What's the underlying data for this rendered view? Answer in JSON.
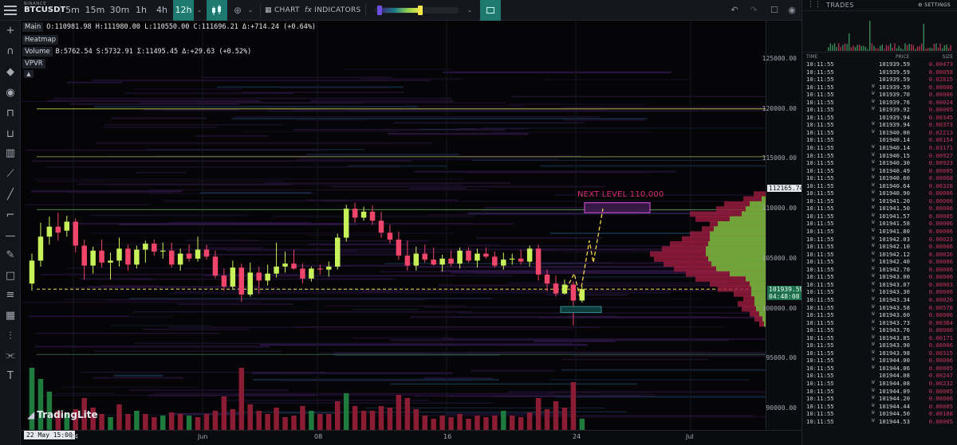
{
  "header": {
    "exchange": "BINANCE",
    "symbol": "BTCUSDT",
    "timeframes": [
      "5m",
      "15m",
      "30m",
      "1h",
      "4h",
      "12h"
    ],
    "active_timeframe": "12h",
    "chart_label": "CHART",
    "indicators_label": "INDICATORS"
  },
  "legend": {
    "main_tag": "Main",
    "ohlc": "O:110981.98 H:111980.00 L:110550.00 C:111696.21 Δ:+714.24 (+0.64%)",
    "heatmap_tag": "Heatmap",
    "volume_tag": "Volume",
    "volume_values": "B:5762.54 S:5732.91 Σ:11495.45 Δ:+29.63 (+0.52%)",
    "vpvr_tag": "VPVR"
  },
  "annotation": {
    "next_level": "NEXT LEVEL 110,000"
  },
  "watermark": "TradingLite",
  "price_axis": {
    "labels": [
      "125000.00",
      "120000.00",
      "115000.00",
      "110000.00",
      "105000.00",
      "100000.00",
      "95000.00",
      "90000.00"
    ],
    "high_badge": "112165.74",
    "current_badge": "101939.59",
    "countdown": "04:48:08"
  },
  "time_axis": {
    "cursor_badge": "22 May 15:00",
    "labels": [
      "24",
      "Jun",
      "08",
      "16",
      "24",
      "Jul"
    ]
  },
  "trades_panel": {
    "title": "TRADES",
    "settings_label": "SETTINGS",
    "columns": {
      "time": "TIME",
      "price": "PRICE",
      "size": "SIZE"
    },
    "rows": [
      {
        "time": "10:11:55",
        "m": "",
        "price": "101939.59",
        "size": "0.00473"
      },
      {
        "time": "10:11:55",
        "m": "",
        "price": "101939.59",
        "size": "0.00058"
      },
      {
        "time": "10:11:55",
        "m": "",
        "price": "101939.59",
        "size": "0.02815"
      },
      {
        "time": "10:11:55",
        "m": "W",
        "price": "101939.59",
        "size": "0.00006"
      },
      {
        "time": "10:11:55",
        "m": "W",
        "price": "101939.70",
        "size": "0.00006"
      },
      {
        "time": "10:11:55",
        "m": "W",
        "price": "101939.76",
        "size": "0.00024"
      },
      {
        "time": "10:11:55",
        "m": "W",
        "price": "101939.92",
        "size": "0.00005"
      },
      {
        "time": "10:11:55",
        "m": "",
        "price": "101939.94",
        "size": "0.00345"
      },
      {
        "time": "10:11:55",
        "m": "W",
        "price": "101939.94",
        "size": "0.00373"
      },
      {
        "time": "10:11:55",
        "m": "W",
        "price": "101940.00",
        "size": "0.02213"
      },
      {
        "time": "10:11:55",
        "m": "",
        "price": "101940.14",
        "size": "0.06154"
      },
      {
        "time": "10:11:55",
        "m": "W",
        "price": "101940.14",
        "size": "0.03171"
      },
      {
        "time": "10:11:55",
        "m": "W",
        "price": "101940.15",
        "size": "0.00927"
      },
      {
        "time": "10:11:55",
        "m": "W",
        "price": "101940.30",
        "size": "0.00923"
      },
      {
        "time": "10:11:55",
        "m": "W",
        "price": "101940.49",
        "size": "0.00005"
      },
      {
        "time": "10:11:55",
        "m": "W",
        "price": "101940.60",
        "size": "0.00068"
      },
      {
        "time": "10:11:55",
        "m": "W",
        "price": "101940.64",
        "size": "0.00328"
      },
      {
        "time": "10:11:55",
        "m": "W",
        "price": "101940.90",
        "size": "0.00006"
      },
      {
        "time": "10:11:55",
        "m": "W",
        "price": "101941.20",
        "size": "0.00006"
      },
      {
        "time": "10:11:55",
        "m": "W",
        "price": "101941.50",
        "size": "0.00006"
      },
      {
        "time": "10:11:55",
        "m": "W",
        "price": "101941.57",
        "size": "0.00005"
      },
      {
        "time": "10:11:55",
        "m": "W",
        "price": "101941.58",
        "size": "0.00006"
      },
      {
        "time": "10:11:55",
        "m": "W",
        "price": "101941.80",
        "size": "0.00006"
      },
      {
        "time": "10:11:55",
        "m": "W",
        "price": "101942.03",
        "size": "0.00023"
      },
      {
        "time": "10:11:55",
        "m": "W",
        "price": "101942.10",
        "size": "0.00006"
      },
      {
        "time": "10:11:55",
        "m": "W",
        "price": "101942.12",
        "size": "0.00026"
      },
      {
        "time": "10:11:55",
        "m": "W",
        "price": "101942.40",
        "size": "0.00006"
      },
      {
        "time": "10:11:55",
        "m": "W",
        "price": "101942.70",
        "size": "0.00006"
      },
      {
        "time": "10:11:55",
        "m": "W",
        "price": "101943.00",
        "size": "0.00006"
      },
      {
        "time": "10:11:55",
        "m": "W",
        "price": "101943.07",
        "size": "0.00003"
      },
      {
        "time": "10:11:55",
        "m": "W",
        "price": "101943.30",
        "size": "0.00006"
      },
      {
        "time": "10:11:55",
        "m": "W",
        "price": "101943.34",
        "size": "0.00026"
      },
      {
        "time": "10:11:55",
        "m": "W",
        "price": "101943.58",
        "size": "0.00578"
      },
      {
        "time": "10:11:55",
        "m": "W",
        "price": "101943.60",
        "size": "0.00006"
      },
      {
        "time": "10:11:55",
        "m": "W",
        "price": "101943.73",
        "size": "0.00384"
      },
      {
        "time": "10:11:55",
        "m": "W",
        "price": "101943.76",
        "size": "0.00006"
      },
      {
        "time": "10:11:55",
        "m": "W",
        "price": "101943.85",
        "size": "0.00171"
      },
      {
        "time": "10:11:55",
        "m": "W",
        "price": "101943.90",
        "size": "0.00006"
      },
      {
        "time": "10:11:55",
        "m": "W",
        "price": "101943.98",
        "size": "0.00315"
      },
      {
        "time": "10:11:55",
        "m": "W",
        "price": "101944.00",
        "size": "0.00006"
      },
      {
        "time": "10:11:55",
        "m": "W",
        "price": "101944.06",
        "size": "0.00005"
      },
      {
        "time": "10:11:55",
        "m": "",
        "price": "101944.08",
        "size": "0.00247"
      },
      {
        "time": "10:11:55",
        "m": "W",
        "price": "101944.08",
        "size": "0.00232"
      },
      {
        "time": "10:11:55",
        "m": "W",
        "price": "101944.09",
        "size": "0.00005"
      },
      {
        "time": "10:11:55",
        "m": "W",
        "price": "101944.20",
        "size": "0.00006"
      },
      {
        "time": "10:11:55",
        "m": "W",
        "price": "101944.44",
        "size": "0.00005"
      },
      {
        "time": "10:11:55",
        "m": "W",
        "price": "101944.50",
        "size": "0.00188"
      },
      {
        "time": "10:11:55",
        "m": "W",
        "price": "101944.53",
        "size": "0.00005"
      }
    ]
  },
  "colors": {
    "bull": "#c8f25a",
    "bear": "#f0456b",
    "accent": "#1e7a6e",
    "vol_bull": "#1f7a3e",
    "vol_bear": "#8a1c33",
    "projection": "#f2d34e",
    "box_top": "#d050d8",
    "box_bottom": "#2e8f8f"
  },
  "chart_data": {
    "type": "candlestick",
    "ylim": [
      88000,
      128000
    ],
    "candles": [
      {
        "o": 102500,
        "h": 105500,
        "l": 101800,
        "c": 104800
      },
      {
        "o": 104800,
        "h": 108600,
        "l": 104200,
        "c": 107200
      },
      {
        "o": 107200,
        "h": 109200,
        "l": 106400,
        "c": 108200
      },
      {
        "o": 108200,
        "h": 109600,
        "l": 106800,
        "c": 107600
      },
      {
        "o": 107800,
        "h": 109300,
        "l": 107200,
        "c": 108700
      },
      {
        "o": 108700,
        "h": 109000,
        "l": 105600,
        "c": 106300
      },
      {
        "o": 106300,
        "h": 106900,
        "l": 102900,
        "c": 104300
      },
      {
        "o": 104300,
        "h": 106200,
        "l": 103500,
        "c": 105800
      },
      {
        "o": 105800,
        "h": 106900,
        "l": 104100,
        "c": 104600
      },
      {
        "o": 104600,
        "h": 105600,
        "l": 102900,
        "c": 104800
      },
      {
        "o": 104800,
        "h": 107100,
        "l": 104200,
        "c": 106000
      },
      {
        "o": 106000,
        "h": 106400,
        "l": 103800,
        "c": 104400
      },
      {
        "o": 104400,
        "h": 106300,
        "l": 104000,
        "c": 105900
      },
      {
        "o": 105900,
        "h": 106800,
        "l": 104600,
        "c": 106500
      },
      {
        "o": 106500,
        "h": 106900,
        "l": 105300,
        "c": 105700
      },
      {
        "o": 105700,
        "h": 106600,
        "l": 105000,
        "c": 105800
      },
      {
        "o": 105800,
        "h": 106600,
        "l": 104100,
        "c": 104400
      },
      {
        "o": 104400,
        "h": 106000,
        "l": 103800,
        "c": 105500
      },
      {
        "o": 105500,
        "h": 106400,
        "l": 104700,
        "c": 105000
      },
      {
        "o": 105000,
        "h": 107200,
        "l": 104700,
        "c": 105900
      },
      {
        "o": 105900,
        "h": 106400,
        "l": 104900,
        "c": 105200
      },
      {
        "o": 105200,
        "h": 105800,
        "l": 103000,
        "c": 103300
      },
      {
        "o": 103300,
        "h": 104000,
        "l": 101800,
        "c": 102200
      },
      {
        "o": 102200,
        "h": 104800,
        "l": 102000,
        "c": 104100
      },
      {
        "o": 104100,
        "h": 104500,
        "l": 100700,
        "c": 101400
      },
      {
        "o": 101400,
        "h": 104600,
        "l": 101200,
        "c": 103600
      },
      {
        "o": 103600,
        "h": 104200,
        "l": 101500,
        "c": 102800
      },
      {
        "o": 102800,
        "h": 104400,
        "l": 102300,
        "c": 103500
      },
      {
        "o": 103500,
        "h": 106600,
        "l": 103100,
        "c": 104200
      },
      {
        "o": 104200,
        "h": 105700,
        "l": 103600,
        "c": 104500
      },
      {
        "o": 104500,
        "h": 105900,
        "l": 103900,
        "c": 104000
      },
      {
        "o": 104000,
        "h": 104500,
        "l": 102500,
        "c": 103000
      },
      {
        "o": 103000,
        "h": 104200,
        "l": 102700,
        "c": 104000
      },
      {
        "o": 104000,
        "h": 104400,
        "l": 103400,
        "c": 103900
      },
      {
        "o": 103900,
        "h": 104700,
        "l": 103200,
        "c": 104200
      },
      {
        "o": 104200,
        "h": 107500,
        "l": 103900,
        "c": 107100
      },
      {
        "o": 107100,
        "h": 110400,
        "l": 106700,
        "c": 110000
      },
      {
        "o": 110000,
        "h": 110600,
        "l": 108600,
        "c": 109100
      },
      {
        "o": 109100,
        "h": 110200,
        "l": 108800,
        "c": 109700
      },
      {
        "o": 109700,
        "h": 110300,
        "l": 108400,
        "c": 108800
      },
      {
        "o": 108800,
        "h": 109700,
        "l": 107100,
        "c": 107600
      },
      {
        "o": 107600,
        "h": 108400,
        "l": 106500,
        "c": 106900
      },
      {
        "o": 106900,
        "h": 107700,
        "l": 104900,
        "c": 105300
      },
      {
        "o": 105300,
        "h": 106800,
        "l": 103800,
        "c": 104300
      },
      {
        "o": 104300,
        "h": 106200,
        "l": 103800,
        "c": 105500
      },
      {
        "o": 105500,
        "h": 106400,
        "l": 104600,
        "c": 104900
      },
      {
        "o": 104900,
        "h": 106100,
        "l": 104300,
        "c": 104400
      },
      {
        "o": 104400,
        "h": 105400,
        "l": 103700,
        "c": 105000
      },
      {
        "o": 105000,
        "h": 105800,
        "l": 104200,
        "c": 104500
      },
      {
        "o": 104500,
        "h": 106100,
        "l": 104000,
        "c": 105800
      },
      {
        "o": 105800,
        "h": 106100,
        "l": 104600,
        "c": 104800
      },
      {
        "o": 104800,
        "h": 106000,
        "l": 104100,
        "c": 105500
      },
      {
        "o": 105500,
        "h": 106100,
        "l": 105000,
        "c": 105200
      },
      {
        "o": 105200,
        "h": 105700,
        "l": 104100,
        "c": 104300
      },
      {
        "o": 104300,
        "h": 105600,
        "l": 103900,
        "c": 104900
      },
      {
        "o": 104900,
        "h": 105500,
        "l": 104400,
        "c": 105000
      },
      {
        "o": 105000,
        "h": 105900,
        "l": 104400,
        "c": 104700
      },
      {
        "o": 104700,
        "h": 106300,
        "l": 104200,
        "c": 106000
      },
      {
        "o": 106000,
        "h": 106400,
        "l": 102800,
        "c": 103400
      },
      {
        "o": 103400,
        "h": 103900,
        "l": 101700,
        "c": 102500
      },
      {
        "o": 102500,
        "h": 103300,
        "l": 101200,
        "c": 101500
      },
      {
        "o": 101500,
        "h": 102900,
        "l": 101400,
        "c": 102400
      },
      {
        "o": 102400,
        "h": 102700,
        "l": 98300,
        "c": 100800
      },
      {
        "o": 100800,
        "h": 102200,
        "l": 100600,
        "c": 101939
      }
    ],
    "volume": [
      {
        "v": 3.9,
        "up": true
      },
      {
        "v": 3.2,
        "up": true
      },
      {
        "v": 2.4,
        "up": true
      },
      {
        "v": 1.2,
        "up": false
      },
      {
        "v": 1.0,
        "up": true
      },
      {
        "v": 1.3,
        "up": false
      },
      {
        "v": 2.0,
        "up": false
      },
      {
        "v": 1.4,
        "up": false
      },
      {
        "v": 1.0,
        "up": false
      },
      {
        "v": 0.8,
        "up": true
      },
      {
        "v": 1.6,
        "up": false
      },
      {
        "v": 1.0,
        "up": false
      },
      {
        "v": 1.2,
        "up": true
      },
      {
        "v": 1.0,
        "up": false
      },
      {
        "v": 0.8,
        "up": false
      },
      {
        "v": 0.9,
        "up": true
      },
      {
        "v": 1.1,
        "up": false
      },
      {
        "v": 1.0,
        "up": false
      },
      {
        "v": 0.9,
        "up": true
      },
      {
        "v": 0.8,
        "up": false
      },
      {
        "v": 1.0,
        "up": false
      },
      {
        "v": 1.2,
        "up": false
      },
      {
        "v": 2.1,
        "up": false
      },
      {
        "v": 1.3,
        "up": false
      },
      {
        "v": 3.9,
        "up": false
      },
      {
        "v": 1.6,
        "up": false
      },
      {
        "v": 1.2,
        "up": false
      },
      {
        "v": 1.0,
        "up": false
      },
      {
        "v": 1.4,
        "up": false
      },
      {
        "v": 0.8,
        "up": false
      },
      {
        "v": 0.9,
        "up": false
      },
      {
        "v": 1.5,
        "up": false
      },
      {
        "v": 1.2,
        "up": true
      },
      {
        "v": 1.0,
        "up": false
      },
      {
        "v": 1.0,
        "up": false
      },
      {
        "v": 1.8,
        "up": false
      },
      {
        "v": 2.3,
        "up": true
      },
      {
        "v": 1.5,
        "up": false
      },
      {
        "v": 1.2,
        "up": false
      },
      {
        "v": 1.2,
        "up": false
      },
      {
        "v": 1.5,
        "up": false
      },
      {
        "v": 1.4,
        "up": false
      },
      {
        "v": 2.2,
        "up": false
      },
      {
        "v": 2.0,
        "up": false
      },
      {
        "v": 1.3,
        "up": false
      },
      {
        "v": 0.9,
        "up": false
      },
      {
        "v": 0.7,
        "up": false
      },
      {
        "v": 0.9,
        "up": false
      },
      {
        "v": 0.8,
        "up": false
      },
      {
        "v": 1.0,
        "up": false
      },
      {
        "v": 0.7,
        "up": false
      },
      {
        "v": 0.9,
        "up": false
      },
      {
        "v": 0.8,
        "up": false
      },
      {
        "v": 0.9,
        "up": false
      },
      {
        "v": 1.2,
        "up": true
      },
      {
        "v": 0.9,
        "up": false
      },
      {
        "v": 0.8,
        "up": false
      },
      {
        "v": 1.1,
        "up": false
      },
      {
        "v": 2.0,
        "up": false
      },
      {
        "v": 1.3,
        "up": false
      },
      {
        "v": 1.8,
        "up": false
      },
      {
        "v": 1.4,
        "up": false
      },
      {
        "v": 3.0,
        "up": false
      },
      {
        "v": 0.7,
        "up": true
      }
    ],
    "horizontal_levels": [
      120000,
      115200,
      109900,
      101939,
      95400
    ],
    "projection_path": [
      [
        101939,
        0
      ],
      [
        103500,
        1
      ],
      [
        101200,
        2
      ],
      [
        106800,
        3
      ],
      [
        104600,
        4
      ],
      [
        110000,
        5
      ]
    ],
    "target_box": [
      109600,
      110600
    ],
    "support_box": [
      99600,
      100200
    ],
    "vpvr": [
      {
        "p": 111500,
        "w": 15,
        "g": 0
      },
      {
        "p": 111000,
        "w": 28,
        "g": 5
      },
      {
        "p": 110500,
        "w": 52,
        "g": 20
      },
      {
        "p": 110000,
        "w": 62,
        "g": 25
      },
      {
        "p": 109500,
        "w": 95,
        "g": 30
      },
      {
        "p": 109000,
        "w": 88,
        "g": 45
      },
      {
        "p": 108500,
        "w": 70,
        "g": 60
      },
      {
        "p": 108000,
        "w": 80,
        "g": 65
      },
      {
        "p": 107500,
        "w": 95,
        "g": 70
      },
      {
        "p": 107000,
        "w": 105,
        "g": 70
      },
      {
        "p": 106500,
        "w": 120,
        "g": 72
      },
      {
        "p": 106000,
        "w": 130,
        "g": 75
      },
      {
        "p": 105500,
        "w": 145,
        "g": 75
      },
      {
        "p": 105000,
        "w": 140,
        "g": 72
      },
      {
        "p": 104500,
        "w": 128,
        "g": 68
      },
      {
        "p": 104000,
        "w": 115,
        "g": 62
      },
      {
        "p": 103500,
        "w": 100,
        "g": 45
      },
      {
        "p": 103000,
        "w": 88,
        "g": 25
      },
      {
        "p": 102500,
        "w": 70,
        "g": 20
      },
      {
        "p": 102000,
        "w": 60,
        "g": 18
      },
      {
        "p": 101500,
        "w": 40,
        "g": 18
      },
      {
        "p": 101000,
        "w": 28,
        "g": 14
      },
      {
        "p": 100500,
        "w": 35,
        "g": 14
      },
      {
        "p": 100000,
        "w": 30,
        "g": 12
      },
      {
        "p": 99500,
        "w": 20,
        "g": 8
      },
      {
        "p": 99000,
        "w": 14,
        "g": 4
      },
      {
        "p": 98500,
        "w": 8,
        "g": 2
      }
    ]
  }
}
